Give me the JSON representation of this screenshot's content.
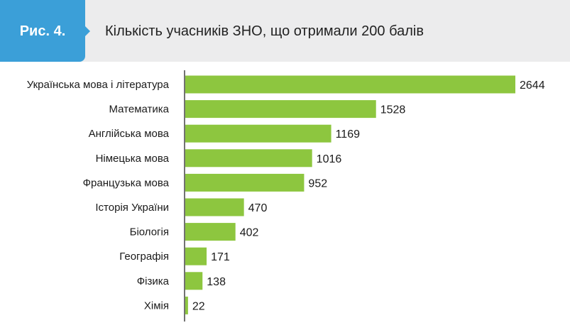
{
  "figure": {
    "label": "Рис. 4.",
    "title": "Кількість учасників ЗНО, що отримали 200 балів"
  },
  "colors": {
    "bar": "#8dc63f",
    "badge": "#3b9fd8",
    "header_bg": "#ececed",
    "axis": "#444444"
  },
  "chart_data": {
    "type": "bar",
    "orientation": "horizontal",
    "title": "Кількість учасників ЗНО, що отримали 200 балів",
    "categories": [
      "Українська мова і література",
      "Математика",
      "Англійська мова",
      "Німецька мова",
      "Французька мова",
      "Історія України",
      "Біологія",
      "Географія",
      "Фізика",
      "Хімія"
    ],
    "values": [
      2644,
      1528,
      1169,
      1016,
      952,
      470,
      402,
      171,
      138,
      22
    ],
    "xlim": [
      0,
      2644
    ],
    "grid": false,
    "legend": "none"
  }
}
